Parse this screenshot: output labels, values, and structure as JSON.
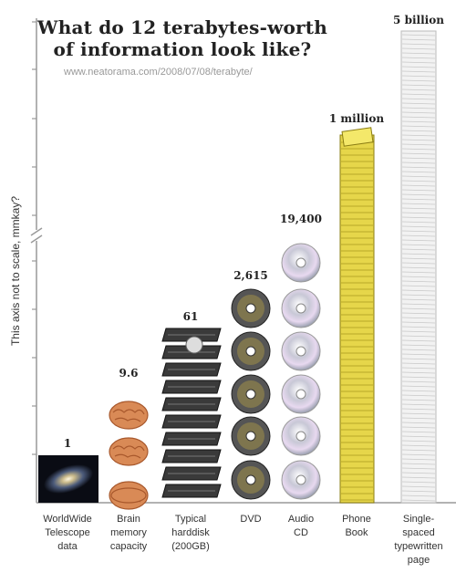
{
  "title": "What do 12 terabytes-worth of information look like?",
  "subtitle": "www.neatorama.com/2008/07/08/terabyte/",
  "chart_data": {
    "type": "bar",
    "ylabel": "This axis not to scale, mmkay?",
    "categories": [
      "WorldWide Telescope data",
      "Brain memory capacity",
      "Typical harddisk (200GB)",
      "DVD",
      "Audio CD",
      "Phone Book",
      "Single-spaced typewritten page"
    ],
    "values": [
      1,
      9.6,
      61,
      2615,
      19400,
      1000000,
      5000000000
    ],
    "value_labels": [
      "1",
      "9.6",
      "61",
      "2,615",
      "19,400",
      "1 million",
      "5 billion"
    ],
    "axis_break": true,
    "grid": false
  },
  "colors": {
    "axis": "#999999",
    "phonebook": "#e6d64a",
    "page": "#f2f2f2"
  },
  "icons": [
    "galaxy-image",
    "brain-icon",
    "harddisk-icon",
    "dvd-icon",
    "cd-icon",
    "phonebook-icon",
    "paper-stack-icon"
  ]
}
